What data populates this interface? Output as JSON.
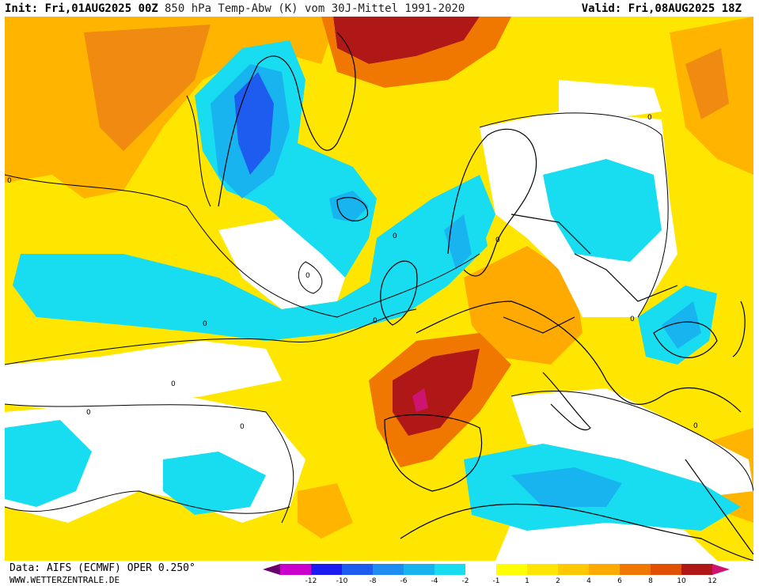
{
  "header": {
    "init": "Init: Fri,01AUG2025 00Z",
    "title": "850 hPa Temp-Abw (K) vom 30J-Mittel 1991-2020",
    "valid": "Valid: Fri,08AUG2025 18Z"
  },
  "footer": {
    "source": "Data: AIFS (ECMWF) OPER 0.250°",
    "site": "WWW.WETTERZENTRALE.DE"
  },
  "legend": {
    "colors": [
      "#6a006a",
      "#cc00cc",
      "#1c1cf0",
      "#1e5cf0",
      "#1e8cf0",
      "#18b4f0",
      "#18dcf0",
      "#ffffff",
      "#ffff00",
      "#ffe600",
      "#ffc800",
      "#ffaa00",
      "#f07800",
      "#e05000",
      "#b01818",
      "#cc1470"
    ],
    "ticks": [
      "-12",
      "-10",
      "-8",
      "-6",
      "-4",
      "-2",
      "-1",
      "1",
      "2",
      "4",
      "6",
      "8",
      "10",
      "12"
    ]
  },
  "map": {
    "contour_labels": [
      "0",
      "0",
      "0",
      "0",
      "0",
      "0",
      "0",
      "0",
      "0",
      "0",
      "0",
      "0"
    ]
  }
}
